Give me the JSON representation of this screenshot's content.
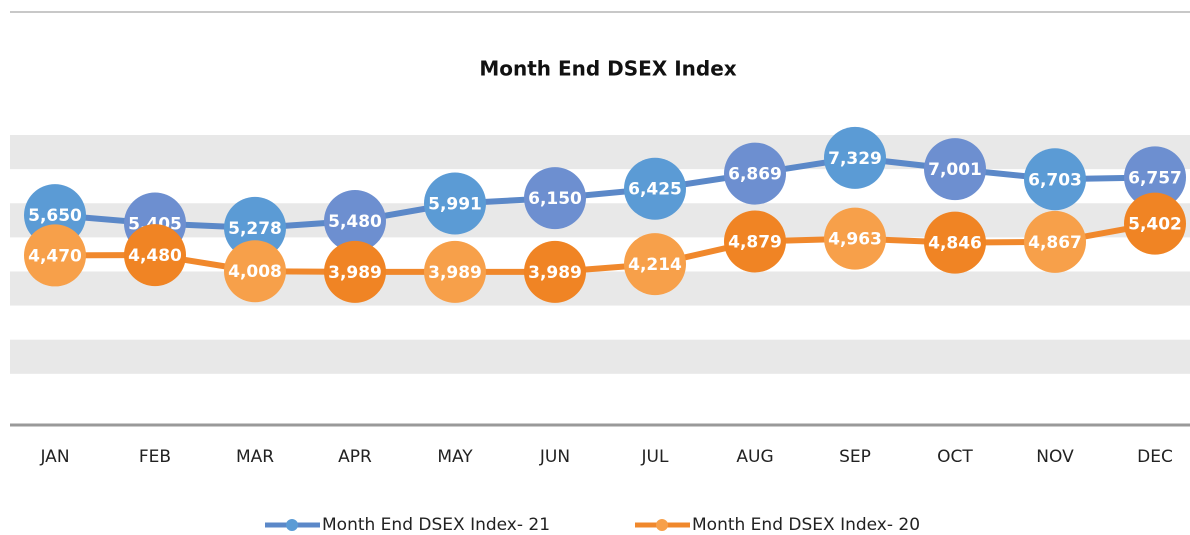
{
  "chart_data": {
    "type": "line",
    "title": "Month End DSEX Index",
    "categories": [
      "JAN",
      "FEB",
      "MAR",
      "APR",
      "MAY",
      "JUN",
      "JUL",
      "AUG",
      "SEP",
      "OCT",
      "NOV",
      "DEC"
    ],
    "series": [
      {
        "name": "Month End DSEX Index- 21",
        "color": "#5b88c8",
        "marker_colors": [
          "#5b9bd5",
          "#6d8fd0"
        ],
        "values": [
          5650,
          5405,
          5278,
          5480,
          5991,
          6150,
          6425,
          6869,
          7329,
          7001,
          6703,
          6757
        ],
        "value_labels": [
          "5,650",
          "5,405",
          "5,278",
          "5,480",
          "5,991",
          "6,150",
          "6,425",
          "6,869",
          "7,329",
          "7,001",
          "6,703",
          "6,757"
        ]
      },
      {
        "name": "Month End DSEX Index- 20",
        "color": "#f0882c",
        "marker_colors": [
          "#f7a04a",
          "#f08424"
        ],
        "values": [
          4470,
          4480,
          4008,
          3989,
          3989,
          3989,
          4214,
          4879,
          4963,
          4846,
          4867,
          5402
        ],
        "value_labels": [
          "4,470",
          "4,480",
          "4,008",
          "3,989",
          "3,989",
          "3,989",
          "4,214",
          "4,879",
          "4,963",
          "4,846",
          "4,867",
          "5,402"
        ]
      }
    ],
    "ylim": [
      -500,
      8000
    ],
    "yticks": [
      0,
      1000,
      2000,
      3000,
      4000,
      5000,
      6000,
      7000,
      8000
    ],
    "grid": "bands",
    "legend": "bottom"
  }
}
